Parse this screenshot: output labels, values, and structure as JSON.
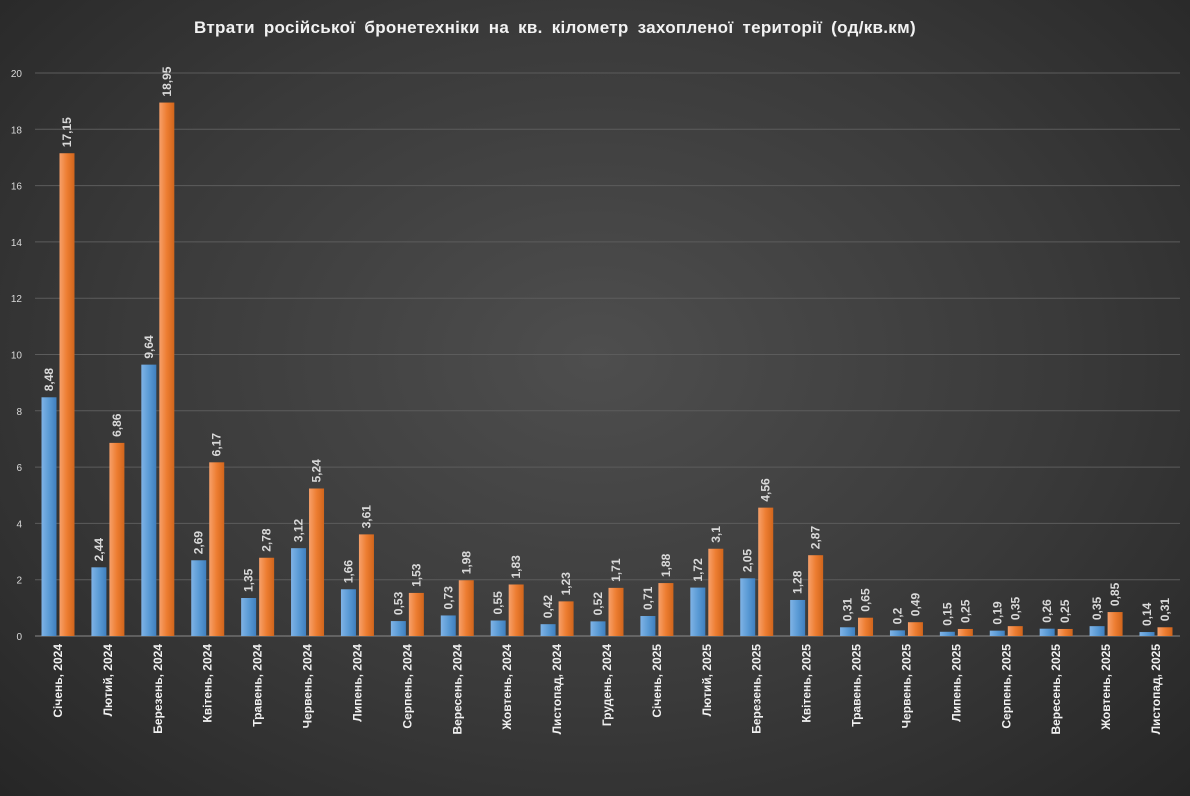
{
  "chart_data": {
    "type": "bar",
    "title": "Втрати російської бронетехніки на кв. кілометр захопленої території (од/кв.км)",
    "xlabel": "",
    "ylabel": "",
    "ylim": [
      0,
      20
    ],
    "yticks": [
      "0",
      "2",
      "4",
      "6",
      "8",
      "10",
      "12",
      "14",
      "16",
      "18",
      "20"
    ],
    "grid": true,
    "legend": "none",
    "categories": [
      "Січень, 2024",
      "Лютий, 2024",
      "Березень, 2024",
      "Квітень, 2024",
      "Травень, 2024",
      "Червень, 2024",
      "Липень, 2024",
      "Серпень, 2024",
      "Вересень, 2024",
      "Жовтень, 2024",
      "Листопад, 2024",
      "Грудень, 2024",
      "Січень, 2025",
      "Лютий, 2025",
      "Березень, 2025",
      "Квітень, 2025",
      "Травень, 2025",
      "Червень, 2025",
      "Липень, 2025",
      "Серпень, 2025",
      "Вересень, 2025",
      "Жовтень, 2025",
      "Листопад, 2025"
    ],
    "series": [
      {
        "name": "series-1",
        "color": "#5b9bd5",
        "values": [
          8.48,
          2.44,
          9.64,
          2.69,
          1.35,
          3.12,
          1.66,
          0.53,
          0.73,
          0.55,
          0.42,
          0.52,
          0.71,
          1.72,
          2.05,
          1.28,
          0.31,
          0.2,
          0.15,
          0.19,
          0.26,
          0.35,
          0.14
        ],
        "labels": [
          "8,48",
          "2,44",
          "9,64",
          "2,69",
          "1,35",
          "3,12",
          "1,66",
          "0,53",
          "0,73",
          "0,55",
          "0,42",
          "0,52",
          "0,71",
          "1,72",
          "2,05",
          "1,28",
          "0,31",
          "0,2",
          "0,15",
          "0,19",
          "0,26",
          "0,35",
          "0,14"
        ]
      },
      {
        "name": "series-2",
        "color": "#ed7d31",
        "values": [
          17.15,
          6.86,
          18.95,
          6.17,
          2.78,
          5.24,
          3.61,
          1.53,
          1.98,
          1.83,
          1.23,
          1.71,
          1.88,
          3.1,
          4.56,
          2.87,
          0.65,
          0.49,
          0.25,
          0.35,
          0.25,
          0.85,
          0.31
        ],
        "labels": [
          "17,15",
          "6,86",
          "18,95",
          "6,17",
          "2,78",
          "5,24",
          "3,61",
          "1,53",
          "1,98",
          "1,83",
          "1,23",
          "1,71",
          "1,88",
          "3,1",
          "4,56",
          "2,87",
          "0,65",
          "0,49",
          "0,25",
          "0,35",
          "0,25",
          "0,85",
          "0,31"
        ]
      }
    ]
  }
}
